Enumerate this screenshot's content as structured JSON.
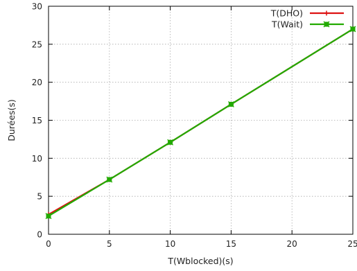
{
  "chart_data": {
    "type": "line",
    "title": "",
    "xlabel": "T(Wblocked)(s)",
    "ylabel": "Durées(s)",
    "xlim": [
      0,
      25
    ],
    "ylim": [
      0,
      30
    ],
    "xticks": [
      0,
      5,
      10,
      15,
      20,
      25
    ],
    "yticks": [
      0,
      5,
      10,
      15,
      20,
      25,
      30
    ],
    "grid": true,
    "legend_position": "top-right",
    "series": [
      {
        "name": "T(DHO)",
        "color": "#dd1111",
        "marker": "plus",
        "x": [
          0,
          5,
          10,
          15,
          25
        ],
        "y": [
          2.6,
          7.2,
          12.1,
          17.1,
          27.0
        ]
      },
      {
        "name": "T(Wait)",
        "color": "#22aa00",
        "marker": "box-x",
        "x": [
          0,
          5,
          10,
          15,
          25
        ],
        "y": [
          2.4,
          7.2,
          12.1,
          17.1,
          27.0
        ]
      }
    ]
  }
}
